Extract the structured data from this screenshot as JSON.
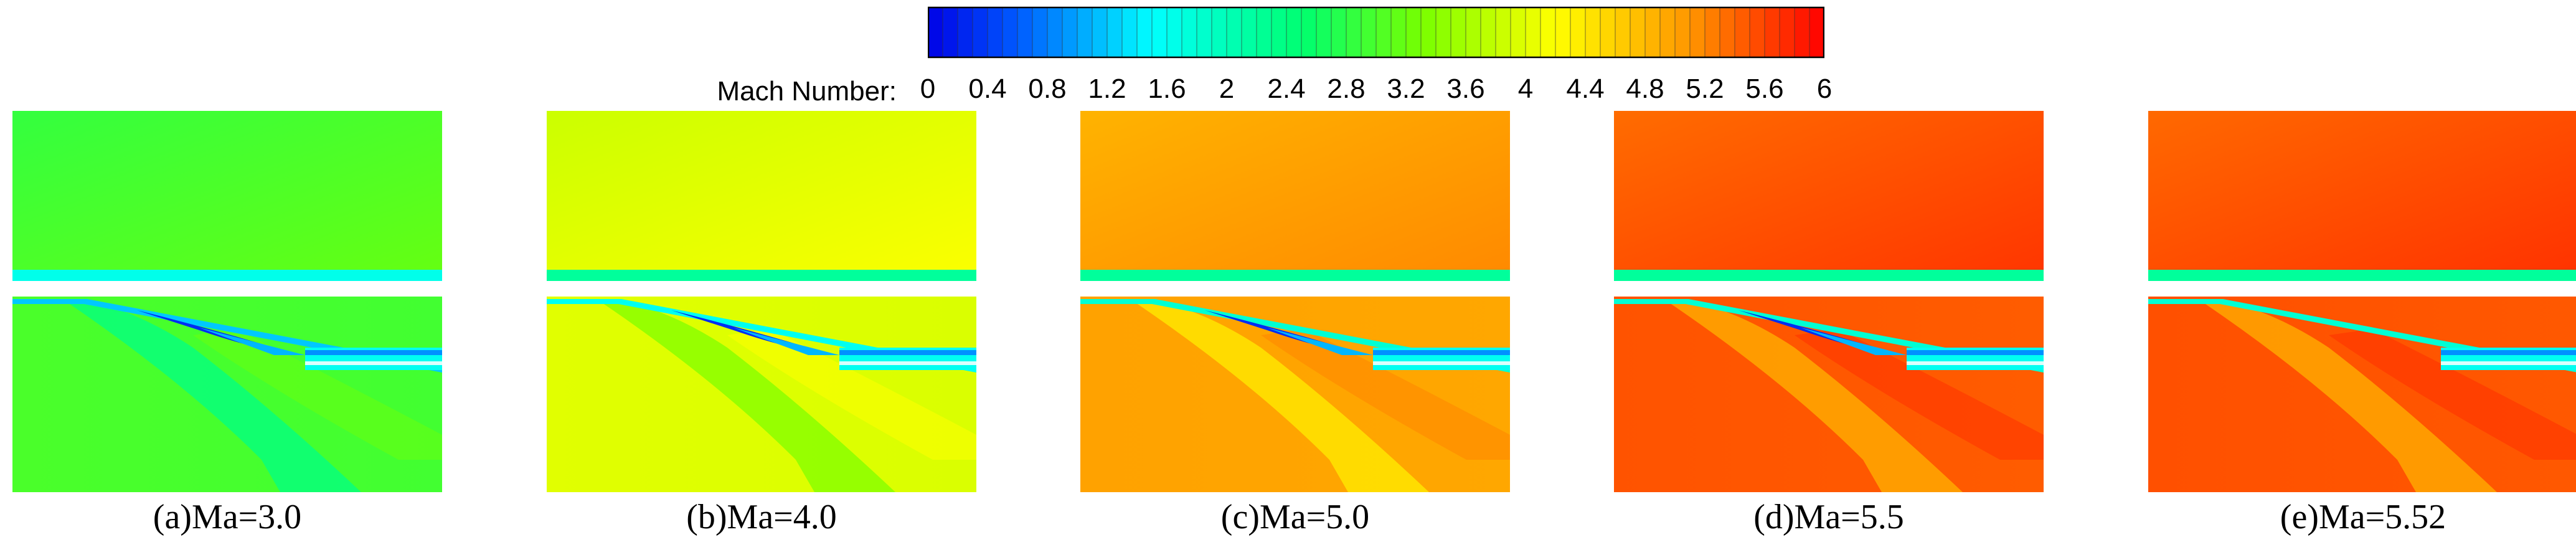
{
  "colorbar": {
    "title": "Mach Number:",
    "min": 0,
    "max": 6,
    "ticks": [
      "0",
      "0.4",
      "0.8",
      "1.2",
      "1.6",
      "2",
      "2.4",
      "2.8",
      "3.2",
      "3.6",
      "4",
      "4.4",
      "4.8",
      "5.2",
      "5.6",
      "6"
    ]
  },
  "panels": [
    {
      "caption": "(a)Ma=3.0",
      "mach": 3.0,
      "shock_wedge": true
    },
    {
      "caption": "(b)Ma=4.0",
      "mach": 4.0,
      "shock_wedge": true
    },
    {
      "caption": "(c)Ma=5.0",
      "mach": 5.0,
      "shock_wedge": true
    },
    {
      "caption": "(d)Ma=5.5",
      "mach": 5.5,
      "shock_wedge": true
    },
    {
      "caption": "(e)Ma=5.52",
      "mach": 5.52,
      "shock_wedge": false
    }
  ]
}
